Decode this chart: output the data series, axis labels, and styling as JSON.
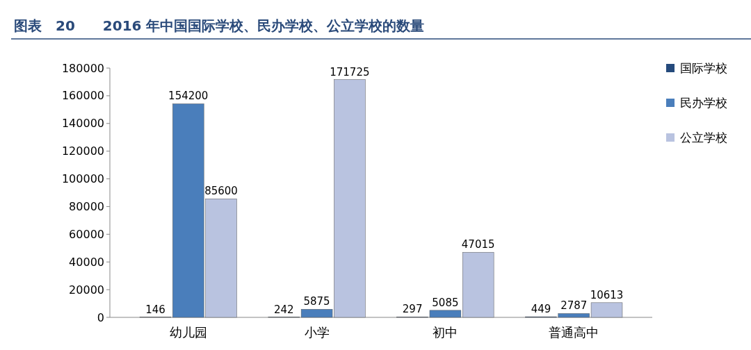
{
  "chart_data": {
    "type": "bar",
    "title": "图表　20　　2016 年中国国际学校、民办学校、公立学校的数量",
    "categories": [
      "幼儿园",
      "小学",
      "初中",
      "普通高中"
    ],
    "series": [
      {
        "name": "国际学校",
        "color": "#254a7c",
        "values": [
          146,
          242,
          297,
          449
        ]
      },
      {
        "name": "民办学校",
        "color": "#4a7ebb",
        "values": [
          154200,
          5875,
          5085,
          2787
        ]
      },
      {
        "name": "公立学校",
        "color": "#b9c3e0",
        "values": [
          85600,
          171725,
          47015,
          10613
        ]
      }
    ],
    "ylim": [
      0,
      180000
    ],
    "yticks": [
      0,
      20000,
      40000,
      60000,
      80000,
      100000,
      120000,
      140000,
      160000,
      180000
    ],
    "data_labels": true,
    "legend": "top right",
    "grid": false
  }
}
